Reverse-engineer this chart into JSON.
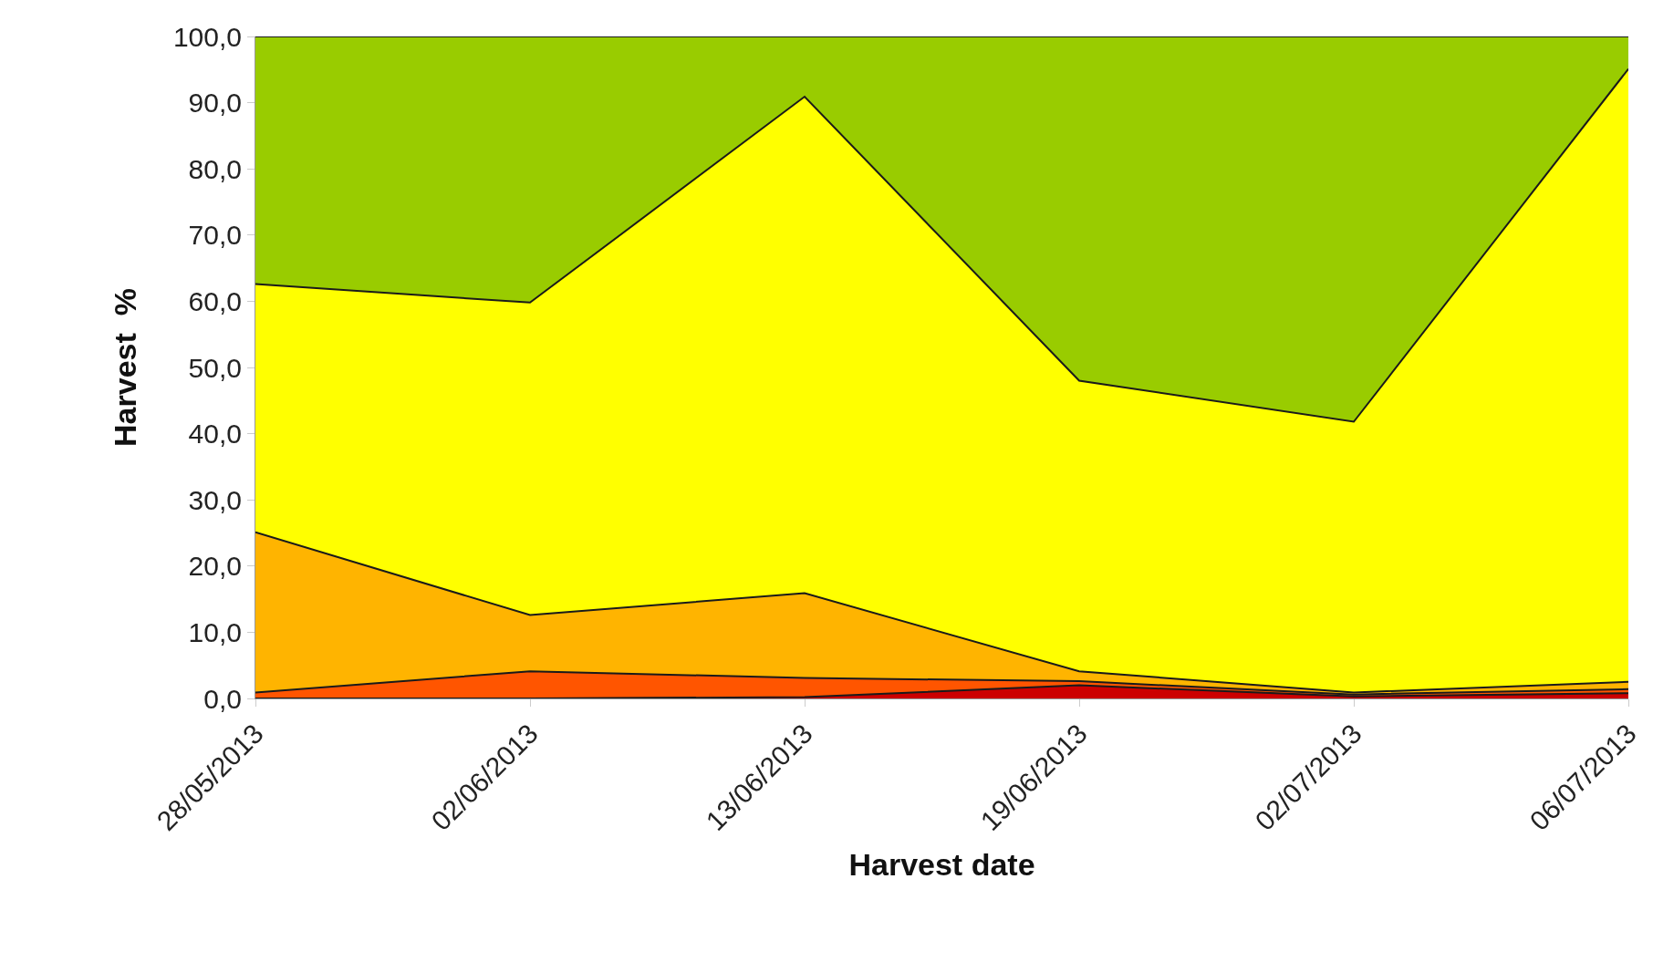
{
  "chart_data": {
    "type": "area",
    "stacked": true,
    "xlabel": "Harvest date",
    "ylabel": "Harvest  %",
    "categories": [
      "28/05/2013",
      "02/06/2013",
      "13/06/2013",
      "19/06/2013",
      "02/07/2013",
      "06/07/2013"
    ],
    "series": [
      {
        "color": "#cc0000",
        "values": [
          0,
          0,
          0.2,
          2.0,
          0.3,
          0.8
        ]
      },
      {
        "color": "#ff5500",
        "values": [
          0.9,
          4.1,
          2.9,
          0.6,
          0.3,
          0.6
        ]
      },
      {
        "color": "#ffb400",
        "values": [
          24.2,
          8.5,
          12.8,
          1.5,
          0.3,
          1.1
        ]
      },
      {
        "color": "#ffff00",
        "values": [
          37.5,
          47.2,
          75.0,
          43.9,
          40.9,
          92.6
        ]
      },
      {
        "color": "#99cc00",
        "values": [
          37.4,
          40.2,
          9.1,
          52.0,
          58.2,
          4.9
        ]
      }
    ],
    "ylim": [
      0,
      100
    ],
    "yticks": [
      {
        "value": 0,
        "label": "0,0"
      },
      {
        "value": 10,
        "label": "10,0"
      },
      {
        "value": 20,
        "label": "20,0"
      },
      {
        "value": 30,
        "label": "30,0"
      },
      {
        "value": 40,
        "label": "40,0"
      },
      {
        "value": 50,
        "label": "50,0"
      },
      {
        "value": 60,
        "label": "60,0"
      },
      {
        "value": 70,
        "label": "70,0"
      },
      {
        "value": 80,
        "label": "80,0"
      },
      {
        "value": 90,
        "label": "90,0"
      },
      {
        "value": 100,
        "label": "100,0"
      }
    ],
    "line_style": "solid"
  }
}
